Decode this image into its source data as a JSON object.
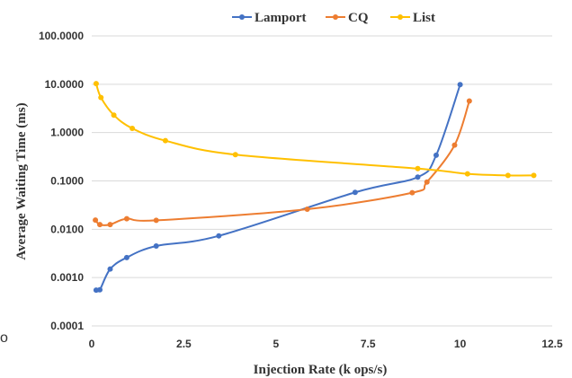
{
  "chart_data": {
    "type": "line",
    "xlabel": "Injection Rate (k ops/s)",
    "ylabel": "Average Waiting Time (ms)",
    "x_scale": "linear",
    "y_scale": "log",
    "xlim": [
      0,
      12.5
    ],
    "ylim": [
      0.0001,
      100
    ],
    "x_ticks": [
      "0",
      "2.5",
      "5",
      "7.5",
      "10",
      "12.5"
    ],
    "y_ticks": [
      "0.0001",
      "0.0010",
      "0.0100",
      "0.1000",
      "1.0000",
      "10.0000",
      "100.0000"
    ],
    "grid": "horizontal",
    "legend_position": "top",
    "series": [
      {
        "name": "Lamport",
        "color": "#4472c4",
        "points": [
          [
            0.12,
            0.00055
          ],
          [
            0.22,
            0.00056
          ],
          [
            0.5,
            0.0015
          ],
          [
            0.95,
            0.0026
          ],
          [
            1.75,
            0.0045
          ],
          [
            3.45,
            0.0073
          ],
          [
            7.15,
            0.058
          ],
          [
            8.85,
            0.12
          ],
          [
            9.35,
            0.34
          ],
          [
            10.0,
            9.8
          ]
        ]
      },
      {
        "name": "CQ",
        "color": "#ed7d31",
        "points": [
          [
            0.1,
            0.0155
          ],
          [
            0.22,
            0.0125
          ],
          [
            0.5,
            0.0125
          ],
          [
            0.95,
            0.0165
          ],
          [
            1.75,
            0.0153
          ],
          [
            5.85,
            0.026
          ],
          [
            8.7,
            0.057
          ],
          [
            9.1,
            0.095
          ],
          [
            9.85,
            0.55
          ],
          [
            10.25,
            4.5
          ]
        ]
      },
      {
        "name": "List",
        "color": "#ffc000",
        "points": [
          [
            0.12,
            10.3
          ],
          [
            0.25,
            5.3
          ],
          [
            0.6,
            2.3
          ],
          [
            1.1,
            1.22
          ],
          [
            2.0,
            0.68
          ],
          [
            3.9,
            0.35
          ],
          [
            8.85,
            0.18
          ],
          [
            10.2,
            0.14
          ],
          [
            11.3,
            0.13
          ],
          [
            12.0,
            0.13
          ]
        ]
      }
    ]
  },
  "stray_text": "o"
}
